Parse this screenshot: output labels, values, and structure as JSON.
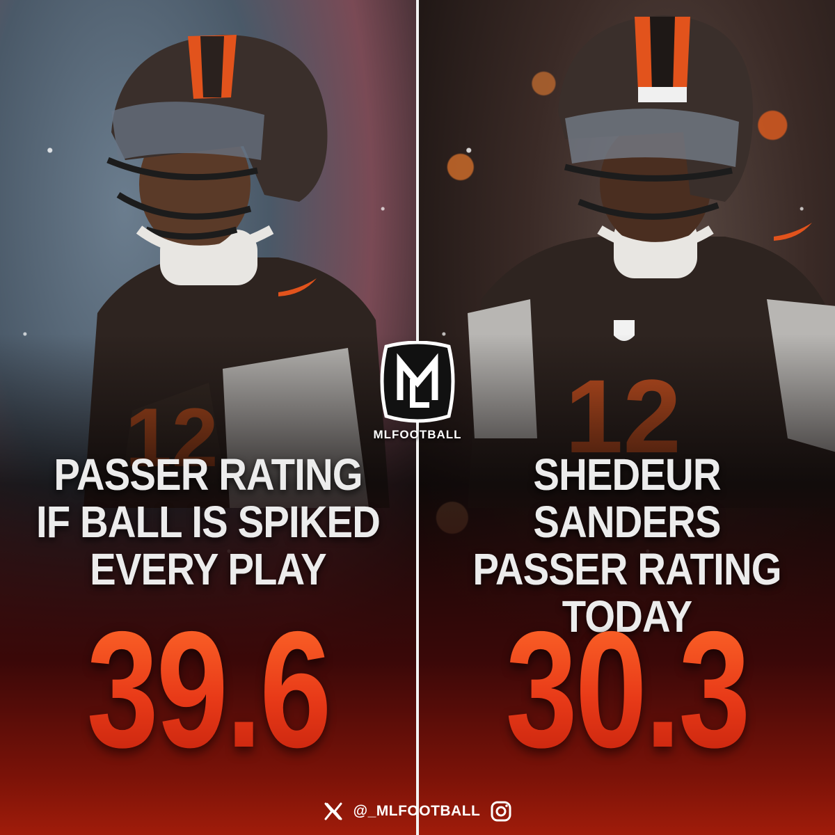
{
  "brand": {
    "logo_icon": "mlfootball-logo-icon",
    "name": "MLFOOTBALL"
  },
  "left": {
    "headline_lines": [
      "PASSER RATING",
      "IF BALL IS SPIKED",
      "EVERY PLAY"
    ],
    "stat": "39.6"
  },
  "right": {
    "headline_lines": [
      "SHEDEUR SANDERS",
      "PASSER RATING",
      "TODAY"
    ],
    "stat": "30.3"
  },
  "footer": {
    "x_icon": "x-logo-icon",
    "handle": "@_MLFOOTBALL",
    "instagram_icon": "instagram-icon"
  },
  "colors": {
    "stat_orange": "#e8431e",
    "helmet_orange": "#e2531c",
    "jersey_brown": "#2e2420",
    "helmet_brown": "#3a2f2b",
    "bottom_red": "#a01c0a"
  }
}
